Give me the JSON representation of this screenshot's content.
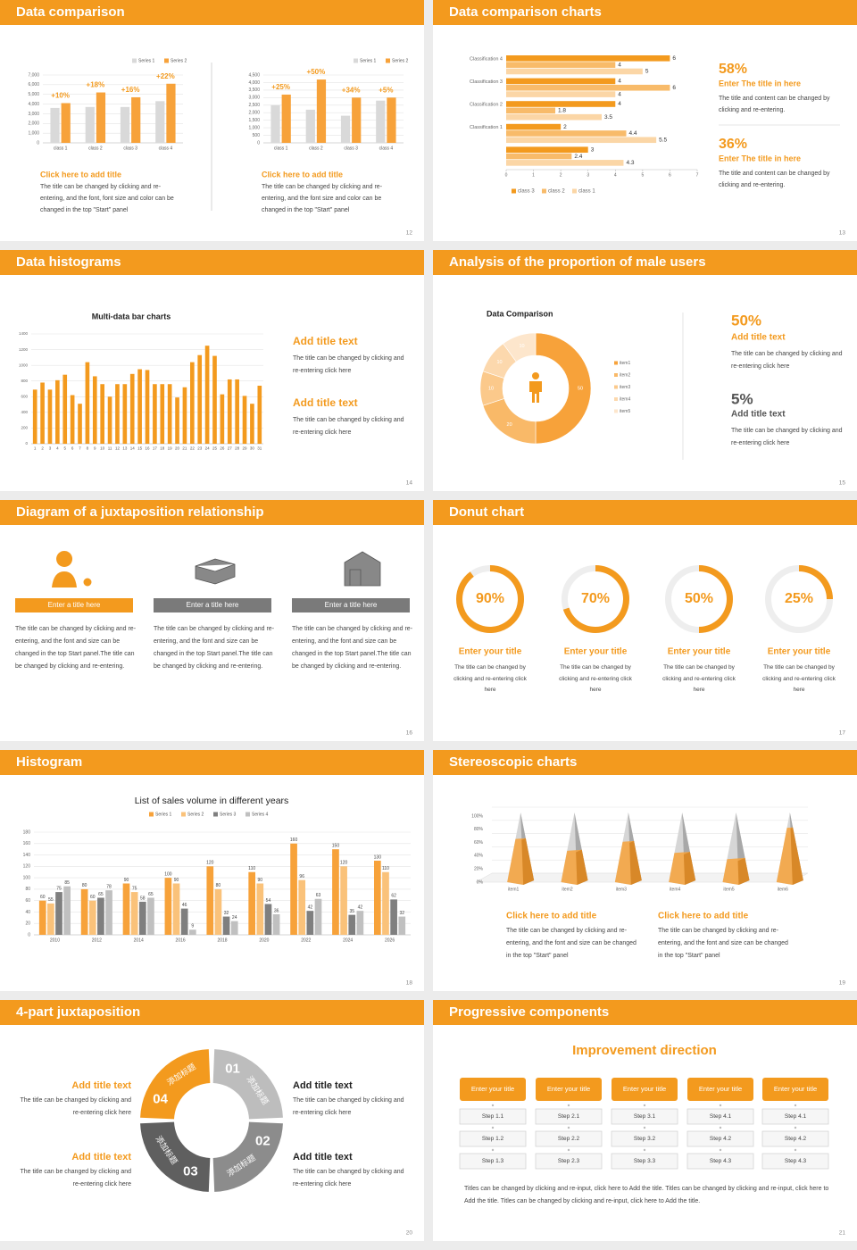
{
  "slides": [
    {
      "title": "Data comparison",
      "page": 12,
      "charts": [
        {
          "type": "bar",
          "categories": [
            "class 1",
            "class 2",
            "class 3",
            "class 4"
          ],
          "series": [
            {
              "name": "Series 1",
              "color": "#d9d9d9",
              "values": [
                3600,
                3700,
                3700,
                4300
              ]
            },
            {
              "name": "Series 2",
              "color": "#f7a23a",
              "values": [
                4100,
                5200,
                4700,
                6100
              ]
            }
          ],
          "annotations": [
            "+10%",
            "+18%",
            "+16%",
            "+22%"
          ],
          "ylim": [
            0,
            7000
          ],
          "yticks": [
            0,
            {
              "value": 1000,
              "label": "1,000"
            },
            {
              "value": 2000,
              "label": "2,000"
            },
            {
              "value": 3000,
              "label": "3,000"
            },
            {
              "value": 4000,
              "label": "4,000"
            },
            {
              "value": 5000,
              "label": "5,000"
            },
            {
              "value": 6000,
              "label": "6,000"
            },
            {
              "value": 7000,
              "label": "7,000"
            }
          ],
          "grid": true
        },
        {
          "type": "bar",
          "categories": [
            "class 1",
            "class 2",
            "class 3",
            "class 4"
          ],
          "series": [
            {
              "name": "Series 1",
              "color": "#d9d9d9",
              "values": [
                2500,
                2200,
                1800,
                2800
              ]
            },
            {
              "name": "Series 2",
              "color": "#f7a23a",
              "values": [
                3200,
                4200,
                3000,
                3000
              ]
            }
          ],
          "annotations": [
            "+25%",
            "+50%",
            "+34%",
            "+5%"
          ],
          "ylim": [
            0,
            4500
          ],
          "yticks": [
            0,
            500,
            {
              "value": 1000,
              "label": "1,000"
            },
            {
              "value": 1500,
              "label": "1,500"
            },
            {
              "value": 2000,
              "label": "2,000"
            },
            {
              "value": 2500,
              "label": "2,500"
            },
            {
              "value": 3000,
              "label": "3,000"
            },
            {
              "value": 3500,
              "label": "3,500"
            },
            {
              "value": 4000,
              "label": "4,000"
            },
            {
              "value": 4500,
              "label": "4,500"
            }
          ],
          "grid": true
        }
      ],
      "blocks": [
        {
          "title": "Click here to add title",
          "text": "The title can be changed by clicking and re-entering, and the font, font size and color can be changed in the top \"Start\" panel"
        },
        {
          "title": "Click here to add title",
          "text": "The title can be changed by clicking and re-entering, and the font size and color can be changed in the top \"Start\" panel"
        }
      ]
    },
    {
      "title": "Data comparison charts",
      "page": 13,
      "chart": {
        "type": "bar",
        "orientation": "horizontal",
        "categories": [
          "Classification 4",
          "Classification 3",
          "Classification 2",
          "Classification 1",
          null
        ],
        "series": [
          {
            "name": "class 3",
            "color": "#f39a1e",
            "values": [
              6,
              4,
              4,
              2,
              3
            ]
          },
          {
            "name": "class 2",
            "color": "#f8bb6a",
            "values": [
              4,
              6,
              1.8,
              4.4,
              2.4
            ]
          },
          {
            "name": "class 1",
            "color": "#fbd6a6",
            "values": [
              5,
              4,
              3.5,
              5.5,
              4.3
            ]
          }
        ],
        "xlim": [
          0,
          7
        ],
        "xticks": [
          0,
          1,
          2,
          3,
          4,
          5,
          6,
          7
        ]
      },
      "blocks": [
        {
          "figure": "58%",
          "title": "Enter The title in here",
          "text": "The title and content can be changed by clicking and re-entering."
        },
        {
          "figure": "36%",
          "title": "Enter The title in here",
          "text": "The title and content can be changed by clicking and re-entering."
        }
      ]
    },
    {
      "title": "Data histograms",
      "page": 14,
      "chart": {
        "type": "bar",
        "title": "Multi-data bar charts",
        "categories": [
          "1",
          "2",
          "3",
          "4",
          "5",
          "6",
          "7",
          "8",
          "9",
          "10",
          "11",
          "12",
          "13",
          "14",
          "15",
          "16",
          "17",
          "18",
          "19",
          "20",
          "21",
          "22",
          "23",
          "24",
          "25",
          "26",
          "27",
          "28",
          "29",
          "30",
          "31"
        ],
        "values": [
          690,
          780,
          690,
          810,
          880,
          620,
          510,
          1040,
          860,
          760,
          600,
          760,
          760,
          890,
          950,
          940,
          760,
          760,
          760,
          590,
          720,
          1040,
          1130,
          1250,
          1120,
          630,
          820,
          820,
          610,
          510,
          740
        ],
        "color": "#f39a1e",
        "ylim": [
          0,
          1400
        ],
        "yticks": [
          0,
          200,
          400,
          600,
          800,
          1000,
          1200,
          1400
        ],
        "grid": true
      },
      "blocks": [
        {
          "title": "Add title text",
          "text": "The title can be changed by clicking and re-entering click here"
        },
        {
          "title": "Add title text",
          "text": "The title can be changed by clicking and re-entering click here"
        }
      ]
    },
    {
      "title": "Analysis of the proportion of male users",
      "page": 15,
      "chart": {
        "type": "pie",
        "title": "Data Comparison",
        "categories": [
          "item1",
          "item2",
          "item3",
          "item4",
          "item5"
        ],
        "values": [
          50,
          20,
          10,
          10,
          10
        ],
        "colors": [
          "#f7a23a",
          "#f9b968",
          "#fbc98b",
          "#fcd8ad",
          "#fde6cc"
        ]
      },
      "blocks": [
        {
          "figure": "50%",
          "title": "Add title text",
          "text": "The title can be changed by clicking and re-entering click here"
        },
        {
          "figure": "5%",
          "title": "Add title text",
          "text": "The title can be changed by clicking and re-entering click here"
        }
      ]
    },
    {
      "title": "Diagram of a juxtaposition relationship",
      "page": 16,
      "columns": [
        {
          "title": "Enter a title here",
          "text": "The title can be changed by clicking and re-entering, and the font and size can be changed in the top Start panel.The title can be changed by clicking and re-entering."
        },
        {
          "title": "Enter a title here",
          "text": "The title can be changed by clicking and re-entering, and the font and size can be changed in the top Start panel.The title can be changed by clicking and re-entering."
        },
        {
          "title": "Enter a title here",
          "text": "The title can be changed by clicking and re-entering, and the font and size can be changed in the top Start panel.The title can be changed by clicking and re-entering."
        }
      ]
    },
    {
      "title": "Donut chart",
      "page": 17,
      "chart": {
        "type": "pie",
        "values": [
          90,
          70,
          50,
          25
        ],
        "value_labels": [
          "90%",
          "70%",
          "50%",
          "25%"
        ],
        "color": "#f39a1e"
      },
      "blocks": [
        {
          "title": "Enter your title",
          "text": "The title can be changed by clicking and re-entering click here"
        },
        {
          "title": "Enter your title",
          "text": "The title can be changed by clicking and re-entering click here"
        },
        {
          "title": "Enter your title",
          "text": "The title can be changed by clicking and re-entering click here"
        },
        {
          "title": "Enter your title",
          "text": "The title can be changed by clicking and re-entering click here"
        }
      ]
    },
    {
      "title": "Histogram",
      "page": 18,
      "chart": {
        "type": "bar",
        "title": "List of sales volume in different years",
        "categories": [
          "2010",
          "2012",
          "2014",
          "2016",
          "2018",
          "2020",
          "2022",
          "2024",
          "2026"
        ],
        "series": [
          {
            "name": "Series 1",
            "color": "#f7a23a",
            "values": [
              60,
              80,
              90,
              100,
              120,
              110,
              160,
              150,
              130
            ]
          },
          {
            "name": "Series 2",
            "color": "#fac27a",
            "values": [
              55,
              60,
              75,
              90,
              80,
              90,
              96,
              120,
              110
            ]
          },
          {
            "name": "Series 3",
            "color": "#7f7f7f",
            "values": [
              75,
              65,
              58,
              46,
              32,
              54,
              42,
              35,
              62
            ]
          },
          {
            "name": "Series 4",
            "color": "#c0c0c0",
            "values": [
              85,
              78,
              65,
              9,
              24,
              36,
              63,
              42,
              32
            ]
          }
        ],
        "ylim": [
          0,
          180
        ],
        "yticks": [
          0,
          20,
          40,
          60,
          80,
          100,
          120,
          140,
          160,
          180
        ],
        "grid": true
      }
    },
    {
      "title": "Stereoscopic charts",
      "page": 19,
      "chart": {
        "type": "bar",
        "categories": [
          "item1",
          "item2",
          "item3",
          "item4",
          "item5",
          "item6"
        ],
        "values": [
          62,
          45,
          58,
          42,
          33,
          78
        ],
        "color": "#f7a23a",
        "ylim": [
          0,
          100
        ],
        "yticks": [
          {
            "value": 0,
            "label": "0%"
          },
          {
            "value": 20,
            "label": "20%"
          },
          {
            "value": 40,
            "label": "40%"
          },
          {
            "value": 60,
            "label": "60%"
          },
          {
            "value": 80,
            "label": "80%"
          },
          {
            "value": 100,
            "label": "100%"
          }
        ],
        "grid": true
      },
      "blocks": [
        {
          "title": "Click here to add title",
          "text": "The title can be changed by clicking and re-entering, and the font and size can be changed in the top \"Start\" panel"
        },
        {
          "title": "Click here to add title",
          "text": "The title can be changed by clicking and re-entering, and the font and size can be changed in the top \"Start\" panel"
        }
      ]
    },
    {
      "title": "4-part juxtaposition",
      "page": 20,
      "segments": [
        {
          "number": "01",
          "label": "添加标题"
        },
        {
          "number": "02",
          "label": "添加标题"
        },
        {
          "number": "03",
          "label": "添加标题"
        },
        {
          "number": "04",
          "label": "添加标题"
        }
      ],
      "blocks": [
        {
          "title": "Add title text",
          "text": "The title can be changed by clicking and re-entering click here"
        },
        {
          "title": "Add title text",
          "text": "The title can be changed by clicking and re-entering click here"
        },
        {
          "title": "Add title text",
          "text": "The title can be changed by clicking and re-entering click here"
        },
        {
          "title": "Add title text",
          "text": "The title can be changed by clicking and re-entering click here"
        }
      ]
    },
    {
      "title": "Progressive components",
      "page": 21,
      "heading": "Improvement direction",
      "columns": [
        {
          "title": "Enter your title",
          "steps": [
            "Step 1.1",
            "Step 1.2",
            "Step 1.3"
          ]
        },
        {
          "title": "Enter your title",
          "steps": [
            "Step 2.1",
            "Step 2.2",
            "Step 2.3"
          ]
        },
        {
          "title": "Enter your title",
          "steps": [
            "Step 3.1",
            "Step 3.2",
            "Step 3.3"
          ]
        },
        {
          "title": "Enter your title",
          "steps": [
            "Step 4.1",
            "Step 4.2",
            "Step 4.3"
          ]
        },
        {
          "title": "Enter your title",
          "steps": [
            "Step 4.1",
            "Step 4.2",
            "Step 4.3"
          ]
        }
      ],
      "footer": "Titles can be changed by clicking and re-input, click here to Add the title. Titles can be changed by clicking and re-input, click here to Add the title. Titles can be changed by clicking and re-input, click here to Add the title."
    }
  ]
}
